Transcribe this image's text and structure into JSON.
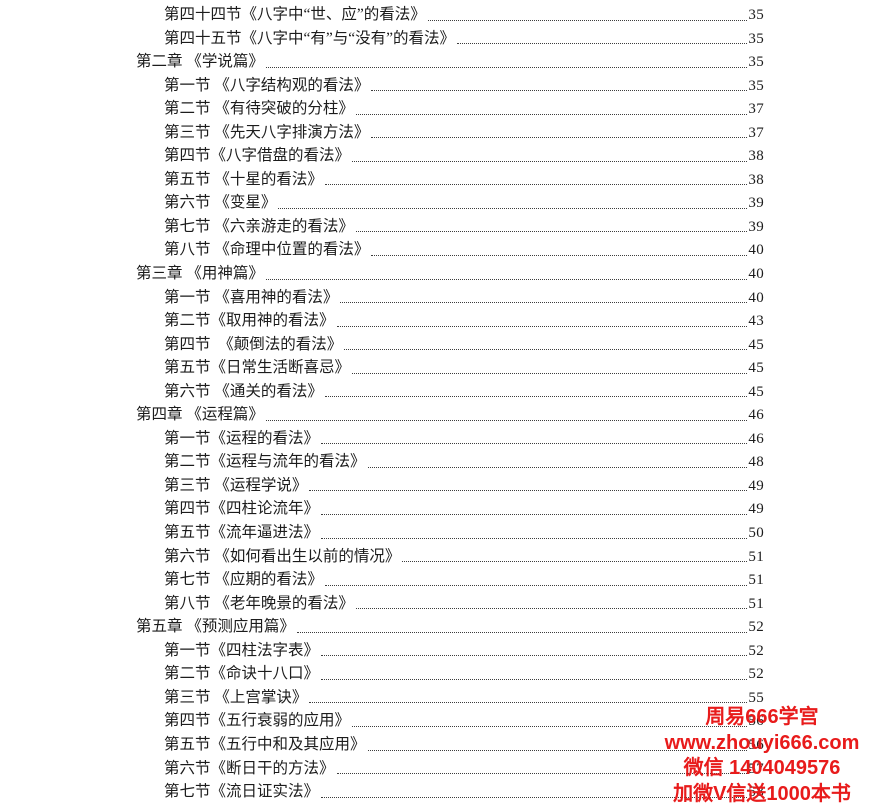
{
  "page": {
    "background": "#ffffff",
    "text_color": "#1c1c1c"
  },
  "toc": {
    "rows": [
      {
        "level": "section",
        "title": "第四十四节《八字中“世、应”的看法》",
        "page": "35"
      },
      {
        "level": "section",
        "title": "第四十五节《八字中“有”与“没有”的看法》",
        "page": "35"
      },
      {
        "level": "chapter",
        "title": "第二章 《学说篇》",
        "page": "35"
      },
      {
        "level": "section",
        "title": "第一节 《八字结构观的看法》",
        "page": "35"
      },
      {
        "level": "section",
        "title": "第二节 《有待突破的分柱》",
        "page": "37"
      },
      {
        "level": "section",
        "title": "第三节 《先天八字排演方法》",
        "page": "37"
      },
      {
        "level": "section",
        "title": "第四节《八字借盘的看法》",
        "page": "38"
      },
      {
        "level": "section",
        "title": "第五节 《十星的看法》",
        "page": "38"
      },
      {
        "level": "section",
        "title": "第六节 《变星》",
        "page": "39"
      },
      {
        "level": "section",
        "title": "第七节 《六亲游走的看法》",
        "page": "39"
      },
      {
        "level": "section",
        "title": "第八节 《命理中位置的看法》",
        "page": "40"
      },
      {
        "level": "chapter",
        "title": "第三章 《用神篇》",
        "page": "40"
      },
      {
        "level": "section",
        "title": "第一节 《喜用神的看法》",
        "page": "40"
      },
      {
        "level": "section",
        "title": "第二节《取用神的看法》",
        "page": "43"
      },
      {
        "level": "section",
        "title": "第四节  《颠倒法的看法》",
        "page": "45"
      },
      {
        "level": "section",
        "title": "第五节《日常生活断喜忌》",
        "page": "45"
      },
      {
        "level": "section",
        "title": "第六节 《通关的看法》",
        "page": "45"
      },
      {
        "level": "chapter",
        "title": "第四章 《运程篇》",
        "page": "46"
      },
      {
        "level": "section",
        "title": "第一节《运程的看法》",
        "page": "46"
      },
      {
        "level": "section",
        "title": "第二节《运程与流年的看法》",
        "page": "48"
      },
      {
        "level": "section",
        "title": "第三节 《运程学说》",
        "page": "49"
      },
      {
        "level": "section",
        "title": "第四节《四柱论流年》",
        "page": "49"
      },
      {
        "level": "section",
        "title": "第五节《流年逼进法》",
        "page": "50"
      },
      {
        "level": "section",
        "title": "第六节 《如何看出生以前的情况》",
        "page": "51"
      },
      {
        "level": "section",
        "title": "第七节 《应期的看法》",
        "page": "51"
      },
      {
        "level": "section",
        "title": "第八节 《老年晚景的看法》",
        "page": "51"
      },
      {
        "level": "chapter",
        "title": "第五章 《预测应用篇》",
        "page": "52"
      },
      {
        "level": "section",
        "title": "第一节《四柱法字表》",
        "page": "52"
      },
      {
        "level": "section",
        "title": "第二节《命诀十八口》",
        "page": "52"
      },
      {
        "level": "section",
        "title": "第三节 《上宫掌诀》",
        "page": "55"
      },
      {
        "level": "section",
        "title": "第四节《五行衰弱的应用》",
        "page": "56"
      },
      {
        "level": "section",
        "title": "第五节《五行中和及其应用》",
        "page": "56"
      },
      {
        "level": "section",
        "title": "第六节《断日干的方法》",
        "page": "57"
      },
      {
        "level": "section",
        "title": "第七节《流日证实法》",
        "page": "58"
      }
    ]
  },
  "watermark": {
    "color": "#e81b1b",
    "lines": [
      "周易666学宫",
      "www.zhouyi666.com",
      "微信 1404049576",
      "加微V信送1000本书"
    ]
  }
}
